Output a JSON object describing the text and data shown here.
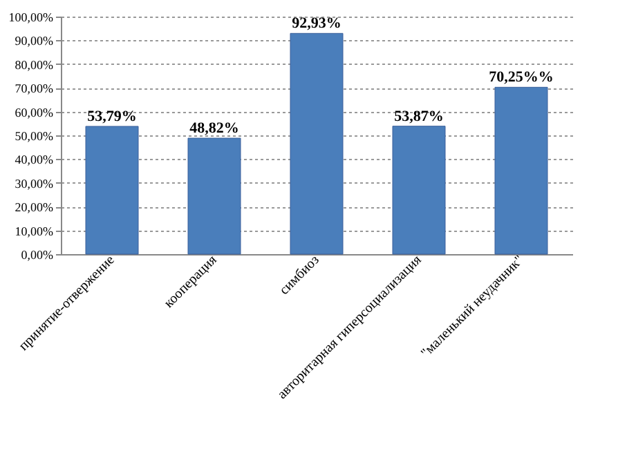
{
  "chart_data": {
    "type": "bar",
    "categories": [
      "принятие-отвержение",
      "кооперация",
      "симбиоз",
      "авторитарная гиперсоциализация",
      "\"маленький неудачник\""
    ],
    "values": [
      53.79,
      48.82,
      92.93,
      53.87,
      70.25
    ],
    "value_labels": [
      "53,79%",
      "48,82%",
      "92,93%",
      "53,87%",
      "70,25%%"
    ],
    "color": "#4a7ebb",
    "ylim": [
      0,
      100
    ],
    "yticks": [
      {
        "value": 0,
        "label": "0,00%"
      },
      {
        "value": 10,
        "label": "10,00%"
      },
      {
        "value": 20,
        "label": "20,00%"
      },
      {
        "value": 30,
        "label": "30,00%"
      },
      {
        "value": 40,
        "label": "40,00%"
      },
      {
        "value": 50,
        "label": "50,00%"
      },
      {
        "value": 60,
        "label": "60,00%"
      },
      {
        "value": 70,
        "label": "70,00%"
      },
      {
        "value": 80,
        "label": "80,00%"
      },
      {
        "value": 90,
        "label": "90,00%"
      },
      {
        "value": 100,
        "label": "100,00%"
      }
    ],
    "grid": "y"
  }
}
